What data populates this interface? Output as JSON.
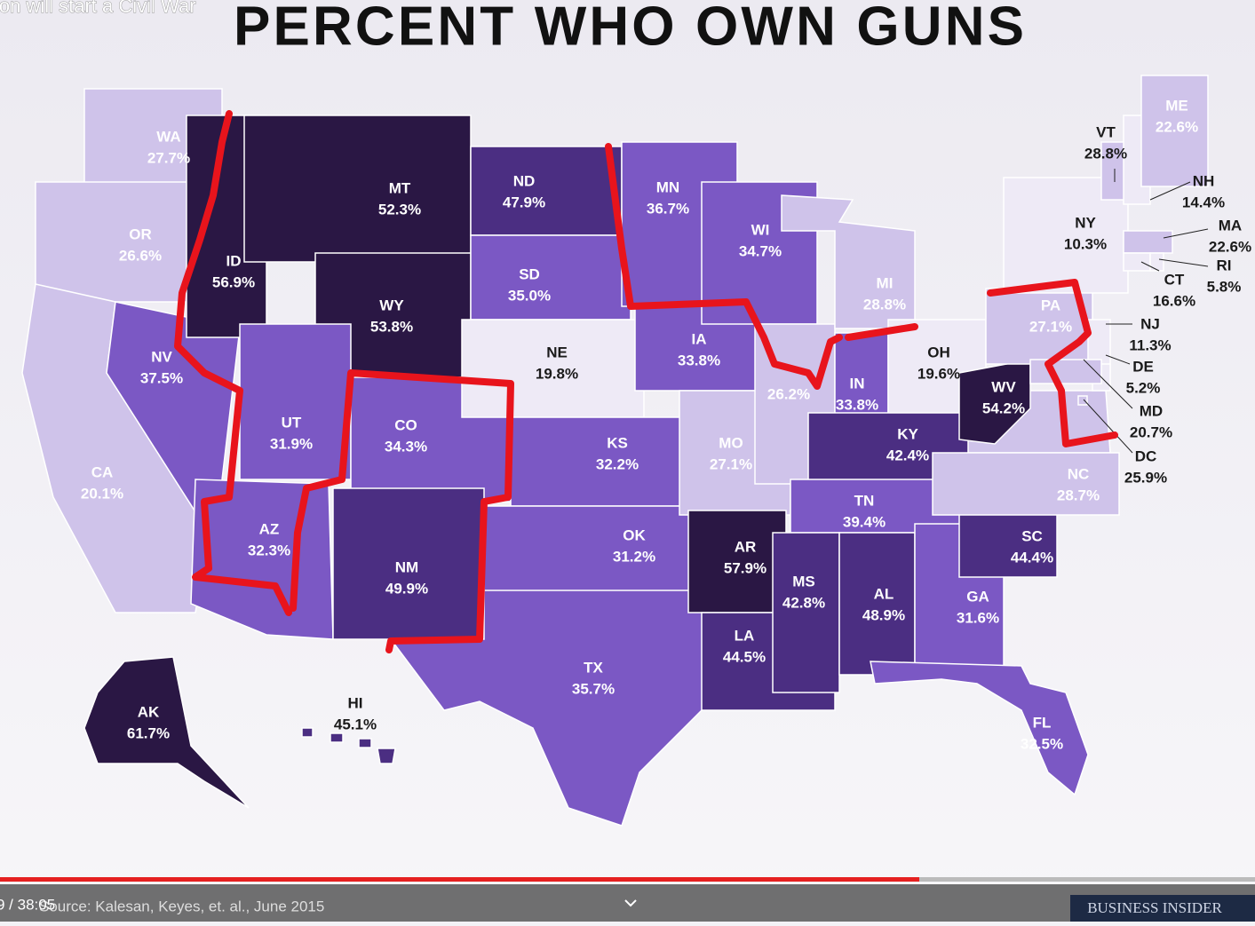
{
  "video_title": "ion will start a Civil War",
  "title": "PERCENT WHO OWN GUNS",
  "states": [
    {
      "code": "WA",
      "value": 27.7,
      "label": "27.7%"
    },
    {
      "code": "OR",
      "value": 26.6,
      "label": "26.6%"
    },
    {
      "code": "CA",
      "value": 20.1,
      "label": "20.1%"
    },
    {
      "code": "NV",
      "value": 37.5,
      "label": "37.5%"
    },
    {
      "code": "ID",
      "value": 56.9,
      "label": "56.9%"
    },
    {
      "code": "MT",
      "value": 52.3,
      "label": "52.3%"
    },
    {
      "code": "WY",
      "value": 53.8,
      "label": "53.8%"
    },
    {
      "code": "UT",
      "value": 31.9,
      "label": "31.9%"
    },
    {
      "code": "CO",
      "value": 34.3,
      "label": "34.3%"
    },
    {
      "code": "AZ",
      "value": 32.3,
      "label": "32.3%"
    },
    {
      "code": "NM",
      "value": 49.9,
      "label": "49.9%"
    },
    {
      "code": "ND",
      "value": 47.9,
      "label": "47.9%"
    },
    {
      "code": "SD",
      "value": 35.0,
      "label": "35.0%"
    },
    {
      "code": "NE",
      "value": 19.8,
      "label": "19.8%"
    },
    {
      "code": "KS",
      "value": 32.2,
      "label": "32.2%"
    },
    {
      "code": "TX",
      "value": 35.7,
      "label": "35.7%"
    },
    {
      "code": "OK",
      "value": 31.2,
      "label": "31.2%"
    },
    {
      "code": "MN",
      "value": 36.7,
      "label": "36.7%"
    },
    {
      "code": "IA",
      "value": 33.8,
      "label": "33.8%"
    },
    {
      "code": "MO",
      "value": 27.1,
      "label": "27.1%"
    },
    {
      "code": "AR",
      "value": 57.9,
      "label": "57.9%"
    },
    {
      "code": "LA",
      "value": 44.5,
      "label": "44.5%"
    },
    {
      "code": "WI",
      "value": 34.7,
      "label": "34.7%"
    },
    {
      "value": 26.2,
      "label": "26.2%"
    },
    {
      "code": "MI",
      "value": 28.8,
      "label": "28.8%"
    },
    {
      "code": "IN",
      "value": 33.8,
      "label": "33.8%"
    },
    {
      "code": "OH",
      "value": 19.6,
      "label": "19.6%"
    },
    {
      "code": "KY",
      "value": 42.4,
      "label": "42.4%"
    },
    {
      "code": "TN",
      "value": 39.4,
      "label": "39.4%"
    },
    {
      "code": "MS",
      "value": 42.8,
      "label": "42.8%"
    },
    {
      "code": "AL",
      "value": 48.9,
      "label": "48.9%"
    },
    {
      "code": "GA",
      "value": 31.6,
      "label": "31.6%"
    },
    {
      "code": "FL",
      "value": 32.5,
      "label": "32.5%"
    },
    {
      "code": "SC",
      "value": 44.4,
      "label": "44.4%"
    },
    {
      "code": "NC",
      "value": 28.7,
      "label": "28.7%"
    },
    {
      "code": "WV",
      "value": 54.2,
      "label": "54.2%"
    },
    {
      "code": "PA",
      "value": 27.1,
      "label": "27.1%"
    },
    {
      "code": "NY",
      "value": 10.3,
      "label": "10.3%"
    },
    {
      "code": "VT",
      "value": 28.8,
      "label": "28.8%"
    },
    {
      "code": "NH",
      "value": 14.4,
      "label": "14.4%"
    },
    {
      "code": "ME",
      "value": 22.6,
      "label": "22.6%"
    },
    {
      "code": "MA",
      "value": 22.6,
      "label": "22.6%"
    },
    {
      "code": "CT",
      "value": 16.6,
      "label": "16.6%"
    },
    {
      "code": "RI",
      "value": 5.8,
      "label": "5.8%"
    },
    {
      "code": "NJ",
      "value": 11.3,
      "label": "11.3%"
    },
    {
      "code": "DE",
      "value": 5.2,
      "label": "5.2%"
    },
    {
      "code": "MD",
      "value": 20.7,
      "label": "20.7%"
    },
    {
      "code": "DC",
      "value": 25.9,
      "label": "25.9%"
    },
    {
      "code": "AK",
      "value": 61.7,
      "label": "61.7%"
    },
    {
      "code": "HI",
      "value": 45.1,
      "label": "45.1%"
    }
  ],
  "source": "Source: Kalesan, Keyes, et. al., June 2015",
  "time": "9 / 38:05",
  "logo": "BUSINESS INSIDER"
}
